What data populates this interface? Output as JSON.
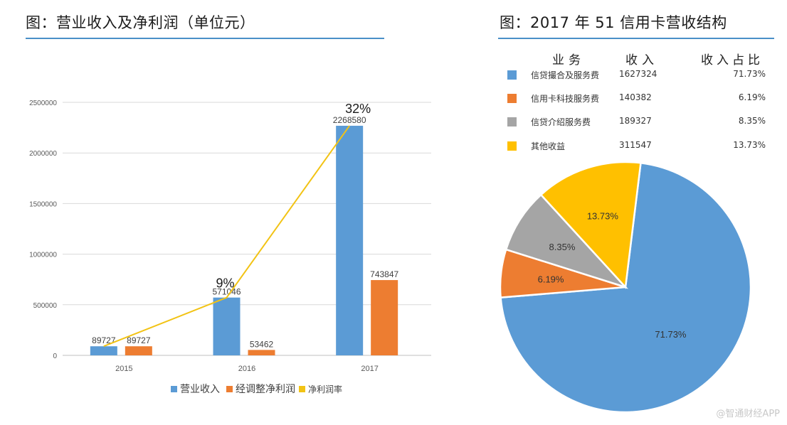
{
  "left_title": "图：营业收入及净利润（单位元）",
  "right_title": "图：2017 年 51 信用卡营收结构",
  "watermark": "@智通财经APP",
  "colors": {
    "blue": "#5b9bd5",
    "orange": "#ed7d31",
    "gray": "#a5a5a5",
    "yellow": "#ffc000",
    "rule": "#4a90c8"
  },
  "chart_data": [
    {
      "type": "bar",
      "categories": [
        "2015",
        "2016",
        "2017"
      ],
      "ylim": [
        0,
        2500000
      ],
      "yticks": [
        0,
        500000,
        1000000,
        1500000,
        2000000,
        2500000
      ],
      "ytick_labels": [
        "0",
        "500000",
        "1000000",
        "1500000",
        "2000000",
        "2500000"
      ],
      "series": [
        {
          "name": "营业收入",
          "color": "#5b9bd5",
          "values": [
            89727,
            571046,
            2268580
          ],
          "labels": [
            "89727",
            "571046",
            "2268580"
          ]
        },
        {
          "name": "经调整净利润",
          "color": "#ed7d31",
          "values": [
            89727,
            53462,
            743847
          ],
          "labels": [
            "89727",
            "53462",
            "743847"
          ]
        }
      ],
      "line": {
        "name": "净利润率",
        "color": "#f2c314",
        "points": [
          89727,
          571046,
          2268580
        ],
        "labels": [
          "",
          "9%",
          "32%"
        ]
      },
      "legend": [
        "营业收入",
        "经调整净利润",
        "净利润率"
      ]
    },
    {
      "type": "pie",
      "columns": [
        "业务",
        "收入",
        "收入占比"
      ],
      "rows": [
        {
          "name": "信贷撮合及服务费",
          "revenue": "1627324",
          "share": "71.73%",
          "color": "#5b9bd5"
        },
        {
          "name": "信用卡科技服务费",
          "revenue": "140382",
          "share": "6.19%",
          "color": "#ed7d31"
        },
        {
          "name": "信贷介绍服务费",
          "revenue": "189327",
          "share": "8.35%",
          "color": "#a5a5a5"
        },
        {
          "name": "其他收益",
          "revenue": "311547",
          "share": "13.73%",
          "color": "#ffc000"
        }
      ],
      "slices": [
        {
          "name": "信贷撮合及服务费",
          "value": 71.73,
          "label": "71.73%",
          "color": "#5b9bd5"
        },
        {
          "name": "信用卡科技服务费",
          "value": 6.19,
          "label": "6.19%",
          "color": "#ed7d31"
        },
        {
          "name": "信贷介绍服务费",
          "value": 8.35,
          "label": "8.35%",
          "color": "#a5a5a5"
        },
        {
          "name": "其他收益",
          "value": 13.73,
          "label": "13.73%",
          "color": "#ffc000"
        }
      ]
    }
  ]
}
